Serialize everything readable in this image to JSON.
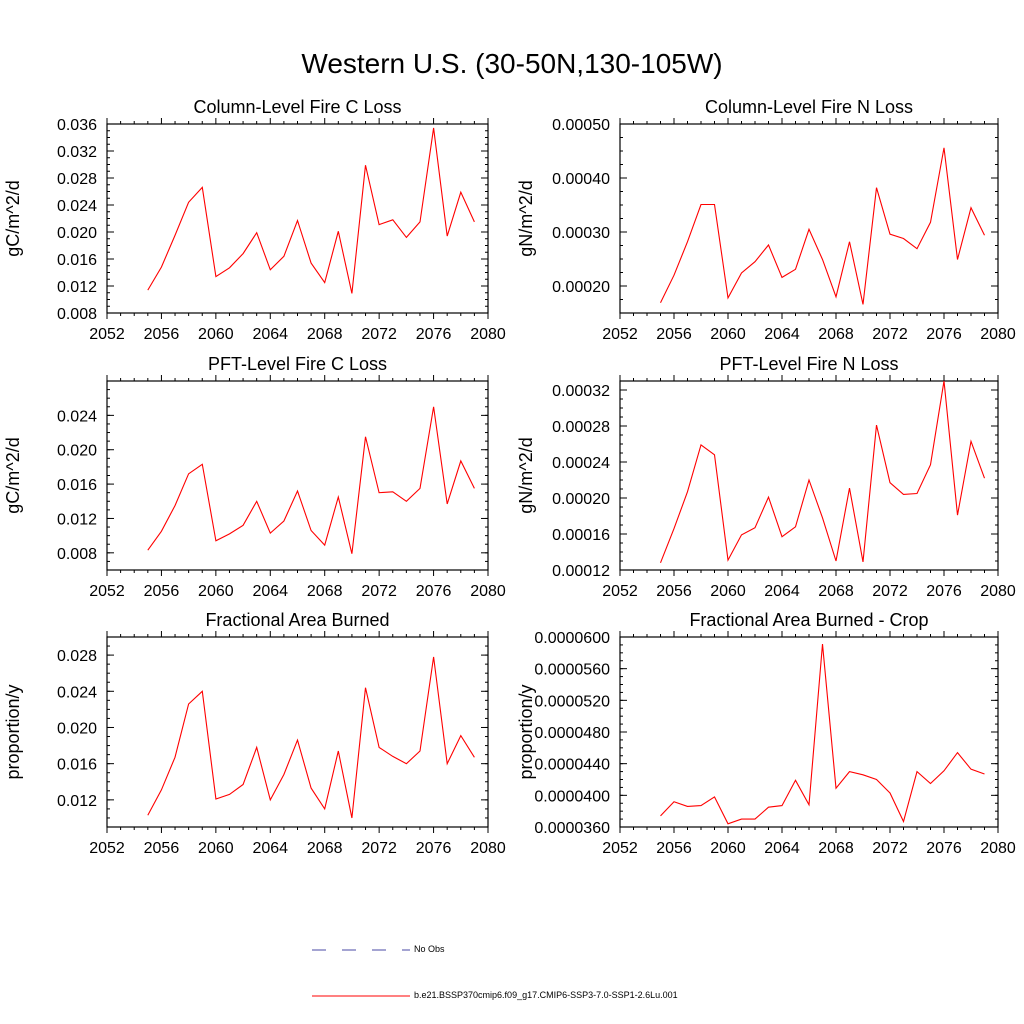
{
  "title": "Western U.S. (30-50N,130-105W)",
  "legend": {
    "obs_label": "No Obs",
    "obs_color": "#4a4aa6",
    "model_label": "b.e21.BSSP370cmip6.f09_g17.CMIP6-SSP3-7.0-SSP1-2.6Lu.001",
    "model_color": "#ff0000"
  },
  "chart_data": [
    {
      "type": "line",
      "title": "Column-Level Fire C Loss",
      "ylabel": "gC/m^2/d",
      "xlim": [
        2052,
        2080
      ],
      "ylim": [
        0.008,
        0.036
      ],
      "xticks": [
        "2052",
        "2056",
        "2060",
        "2064",
        "2068",
        "2072",
        "2076",
        "2080"
      ],
      "yticks": [
        0.008,
        0.012,
        0.016,
        0.02,
        0.024,
        0.028,
        0.032,
        0.036
      ],
      "ytick_labels": [
        "0.008",
        "0.012",
        "0.016",
        "0.020",
        "0.024",
        "0.028",
        "0.032",
        "0.036"
      ],
      "x": [
        2055,
        2056,
        2057,
        2058,
        2059,
        2060,
        2061,
        2062,
        2063,
        2064,
        2065,
        2066,
        2067,
        2068,
        2069,
        2070,
        2071,
        2072,
        2073,
        2074,
        2075,
        2076,
        2077,
        2078,
        2079
      ],
      "series": [
        {
          "values": [
            0.0114,
            0.0148,
            0.0195,
            0.0244,
            0.0266,
            0.0134,
            0.0147,
            0.0168,
            0.0199,
            0.0144,
            0.0164,
            0.0217,
            0.0154,
            0.0125,
            0.0201,
            0.0109,
            0.0299,
            0.0211,
            0.0218,
            0.0192,
            0.0215,
            0.0354,
            0.0194,
            0.0259,
            0.0215
          ]
        }
      ]
    },
    {
      "type": "line",
      "title": "Column-Level Fire N Loss",
      "ylabel": "gN/m^2/d",
      "xlim": [
        2052,
        2080
      ],
      "ylim": [
        0.00015,
        0.0005
      ],
      "xticks": [
        "2052",
        "2056",
        "2060",
        "2064",
        "2068",
        "2072",
        "2076",
        "2080"
      ],
      "yticks": [
        0.0002,
        0.0003,
        0.0004,
        0.0005
      ],
      "ytick_labels": [
        "0.00020",
        "0.00030",
        "0.00040",
        "0.00050"
      ],
      "x": [
        2055,
        2056,
        2057,
        2058,
        2059,
        2060,
        2061,
        2062,
        2063,
        2064,
        2065,
        2066,
        2067,
        2068,
        2069,
        2070,
        2071,
        2072,
        2073,
        2074,
        2075,
        2076,
        2077,
        2078,
        2079
      ],
      "series": [
        {
          "values": [
            0.000169,
            0.00022,
            0.000282,
            0.000351,
            0.000351,
            0.000178,
            0.000224,
            0.000245,
            0.000276,
            0.000216,
            0.000231,
            0.000305,
            0.000249,
            0.00018,
            0.000282,
            0.000166,
            0.000382,
            0.000296,
            0.000288,
            0.000269,
            0.000318,
            0.000456,
            0.000249,
            0.000345,
            0.000294
          ]
        }
      ]
    },
    {
      "type": "line",
      "title": "PFT-Level Fire C Loss",
      "ylabel": "gC/m^2/d",
      "xlim": [
        2052,
        2080
      ],
      "ylim": [
        0.006,
        0.028
      ],
      "xticks": [
        "2052",
        "2056",
        "2060",
        "2064",
        "2068",
        "2072",
        "2076",
        "2080"
      ],
      "yticks": [
        0.008,
        0.012,
        0.016,
        0.02,
        0.024
      ],
      "ytick_labels": [
        "0.008",
        "0.012",
        "0.016",
        "0.020",
        "0.024"
      ],
      "x": [
        2055,
        2056,
        2057,
        2058,
        2059,
        2060,
        2061,
        2062,
        2063,
        2064,
        2065,
        2066,
        2067,
        2068,
        2069,
        2070,
        2071,
        2072,
        2073,
        2074,
        2075,
        2076,
        2077,
        2078,
        2079
      ],
      "series": [
        {
          "values": [
            0.0083,
            0.0105,
            0.0135,
            0.0172,
            0.0183,
            0.0094,
            0.0102,
            0.0112,
            0.014,
            0.0103,
            0.0117,
            0.0152,
            0.0106,
            0.0089,
            0.0145,
            0.0079,
            0.0215,
            0.015,
            0.0151,
            0.014,
            0.0155,
            0.025,
            0.0137,
            0.0187,
            0.0155
          ]
        }
      ]
    },
    {
      "type": "line",
      "title": "PFT-Level Fire N Loss",
      "ylabel": "gN/m^2/d",
      "xlim": [
        2052,
        2080
      ],
      "ylim": [
        0.00012,
        0.00033
      ],
      "xticks": [
        "2052",
        "2056",
        "2060",
        "2064",
        "2068",
        "2072",
        "2076",
        "2080"
      ],
      "yticks": [
        0.00012,
        0.00016,
        0.0002,
        0.00024,
        0.00028,
        0.00032
      ],
      "ytick_labels": [
        "0.00012",
        "0.00016",
        "0.00020",
        "0.00024",
        "0.00028",
        "0.00032"
      ],
      "x": [
        2055,
        2056,
        2057,
        2058,
        2059,
        2060,
        2061,
        2062,
        2063,
        2064,
        2065,
        2066,
        2067,
        2068,
        2069,
        2070,
        2071,
        2072,
        2073,
        2074,
        2075,
        2076,
        2077,
        2078,
        2079
      ],
      "series": [
        {
          "values": [
            0.000128,
            0.000166,
            0.000207,
            0.000259,
            0.000248,
            0.000131,
            0.000159,
            0.000167,
            0.000201,
            0.000157,
            0.000168,
            0.00022,
            0.000178,
            0.00013,
            0.000211,
            0.000129,
            0.000281,
            0.000217,
            0.000204,
            0.000205,
            0.000237,
            0.00033,
            0.000181,
            0.000263,
            0.000222
          ]
        }
      ]
    },
    {
      "type": "line",
      "title": "Fractional Area Burned",
      "ylabel": "proportion/y",
      "xlim": [
        2052,
        2080
      ],
      "ylim": [
        0.009,
        0.03
      ],
      "xticks": [
        "2052",
        "2056",
        "2060",
        "2064",
        "2068",
        "2072",
        "2076",
        "2080"
      ],
      "yticks": [
        0.012,
        0.016,
        0.02,
        0.024,
        0.028
      ],
      "ytick_labels": [
        "0.012",
        "0.016",
        "0.020",
        "0.024",
        "0.028"
      ],
      "x": [
        2055,
        2056,
        2057,
        2058,
        2059,
        2060,
        2061,
        2062,
        2063,
        2064,
        2065,
        2066,
        2067,
        2068,
        2069,
        2070,
        2071,
        2072,
        2073,
        2074,
        2075,
        2076,
        2077,
        2078,
        2079
      ],
      "series": [
        {
          "values": [
            0.0103,
            0.0131,
            0.0167,
            0.0226,
            0.024,
            0.0121,
            0.0126,
            0.0137,
            0.0178,
            0.012,
            0.0148,
            0.0186,
            0.0133,
            0.011,
            0.0174,
            0.01,
            0.0244,
            0.0178,
            0.0168,
            0.016,
            0.0174,
            0.0278,
            0.016,
            0.0191,
            0.0167
          ]
        }
      ]
    },
    {
      "type": "line",
      "title": "Fractional Area Burned - Crop",
      "ylabel": "proportion/y",
      "xlim": [
        2052,
        2080
      ],
      "ylim": [
        3.6e-05,
        6e-05
      ],
      "xticks": [
        "2052",
        "2056",
        "2060",
        "2064",
        "2068",
        "2072",
        "2076",
        "2080"
      ],
      "yticks": [
        3.6e-05,
        4e-05,
        4.4e-05,
        4.8e-05,
        5.2e-05,
        5.6e-05,
        6e-05
      ],
      "ytick_labels": [
        "0.0000360",
        "0.0000400",
        "0.0000440",
        "0.0000480",
        "0.0000520",
        "0.0000560",
        "0.0000600"
      ],
      "x": [
        2055,
        2056,
        2057,
        2058,
        2059,
        2060,
        2061,
        2062,
        2063,
        2064,
        2065,
        2066,
        2067,
        2068,
        2069,
        2070,
        2071,
        2072,
        2073,
        2074,
        2075,
        2076,
        2077,
        2078,
        2079
      ],
      "series": [
        {
          "values": [
            3.74e-05,
            3.92e-05,
            3.86e-05,
            3.87e-05,
            3.98e-05,
            3.64e-05,
            3.7e-05,
            3.7e-05,
            3.85e-05,
            3.87e-05,
            4.19e-05,
            3.88e-05,
            5.91e-05,
            4.09e-05,
            4.3e-05,
            4.26e-05,
            4.2e-05,
            4.03e-05,
            3.67e-05,
            4.3e-05,
            4.15e-05,
            4.31e-05,
            4.54e-05,
            4.33e-05,
            4.27e-05
          ]
        }
      ]
    }
  ]
}
